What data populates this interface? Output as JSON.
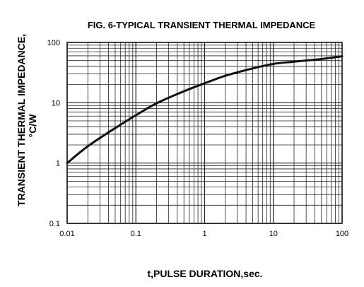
{
  "chart_data": {
    "type": "line",
    "title": "FIG. 6-TYPICAL TRANSIENT THERMAL IMPEDANCE",
    "xlabel": "t,PULSE DURATION,sec.",
    "ylabel_line1": "TRANSIENT THERMAL IMPEDANCE,",
    "ylabel_line2": "°C/W",
    "x_scale": "log",
    "y_scale": "log",
    "xlim": [
      0.01,
      100
    ],
    "ylim": [
      0.1,
      100
    ],
    "x_ticks": [
      "0.01",
      "0.1",
      "1",
      "10",
      "100"
    ],
    "y_ticks": [
      "0.1",
      "1",
      "10",
      "100"
    ],
    "grid": true,
    "series": [
      {
        "color": "#111111",
        "x": [
          0.01,
          0.02,
          0.05,
          0.1,
          0.2,
          0.5,
          1,
          2,
          5,
          10,
          20,
          50,
          100
        ],
        "y": [
          1.0,
          1.9,
          3.8,
          6.2,
          9.8,
          15.5,
          21.0,
          28.0,
          37.0,
          44.0,
          48.0,
          53.0,
          59.0
        ]
      }
    ]
  }
}
